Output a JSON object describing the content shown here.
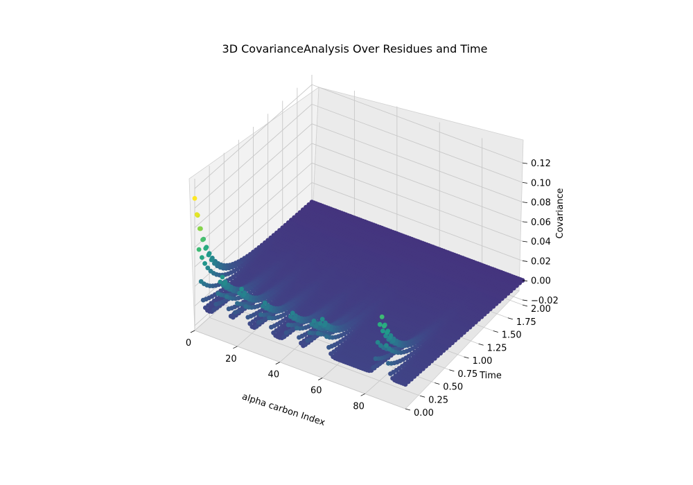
{
  "chart_data": {
    "type": "scatter",
    "title": "3D CovarianceAnalysis Over Residues and Time",
    "xlabel": "alpha carbon Index",
    "ylabel": "Time",
    "zlabel": "Covariance",
    "x_range": [
      0,
      99
    ],
    "y_range": [
      0,
      2
    ],
    "z_range": [
      -0.025,
      0.13
    ],
    "x_ticks": [
      "0",
      "20",
      "40",
      "60",
      "80"
    ],
    "y_ticks": [
      "0.00",
      "0.25",
      "0.50",
      "0.75",
      "1.00",
      "1.25",
      "1.50",
      "1.75",
      "2.00"
    ],
    "z_ticks": [
      "−0.02",
      "0.00",
      "0.02",
      "0.04",
      "0.06",
      "0.08",
      "0.10",
      "0.12"
    ],
    "colormap": "viridis",
    "grid": true,
    "peaks": [
      {
        "x": 0,
        "covariance": 0.11
      },
      {
        "x": 13,
        "covariance": 0.04
      },
      {
        "x": 22,
        "covariance": 0.035
      },
      {
        "x": 33,
        "covariance": 0.03
      },
      {
        "x": 46,
        "covariance": 0.03
      },
      {
        "x": 56,
        "covariance": 0.03
      },
      {
        "x": 60,
        "covariance": 0.035
      },
      {
        "x": 88,
        "covariance": 0.06
      }
    ],
    "baseline_covariance": 0.0
  }
}
